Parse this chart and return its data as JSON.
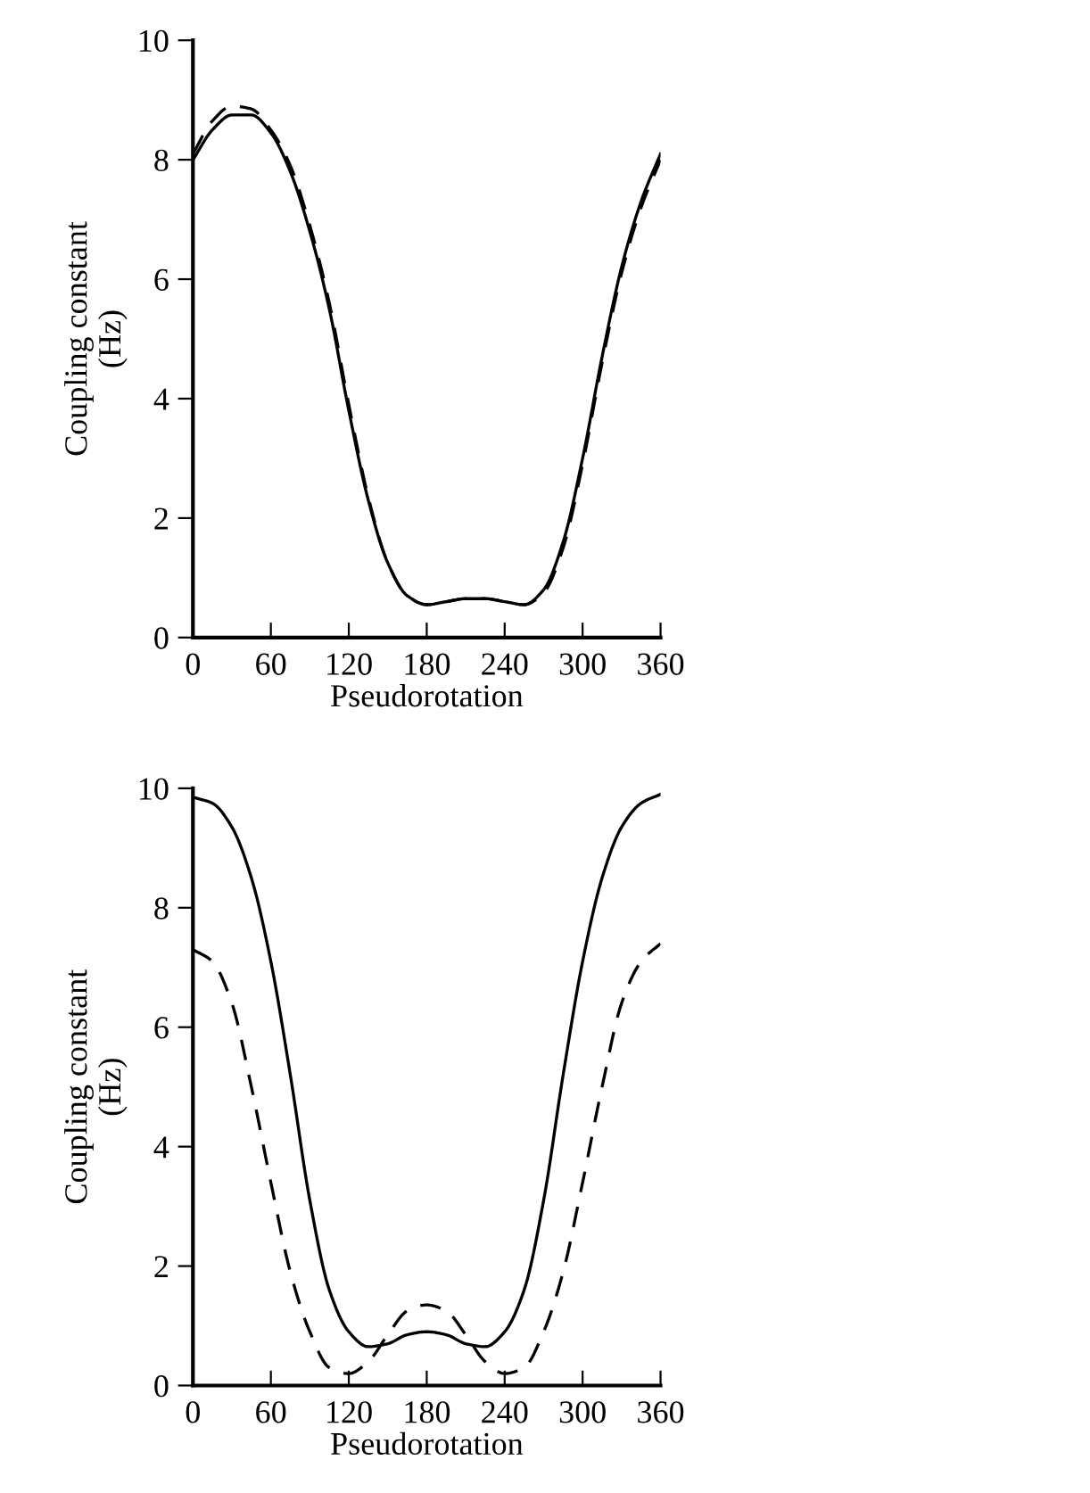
{
  "chart_data": [
    {
      "type": "line",
      "xlabel": "Pseudorotation",
      "ylabel": "Coupling constant\n(Hz)",
      "xlim": [
        0,
        360
      ],
      "ylim": [
        0,
        10
      ],
      "xticks": [
        0,
        60,
        120,
        180,
        240,
        300,
        360
      ],
      "yticks": [
        0,
        2,
        4,
        6,
        8,
        10
      ],
      "grid": false,
      "x": [
        0,
        15,
        30,
        45,
        60,
        75,
        90,
        105,
        120,
        135,
        150,
        165,
        180,
        195,
        210,
        225,
        240,
        255,
        270,
        285,
        300,
        315,
        330,
        345,
        360
      ],
      "series": [
        {
          "color": "#000000",
          "line_style": "solid",
          "values": [
            8.0,
            8.5,
            8.75,
            8.75,
            8.45,
            7.8,
            6.8,
            5.5,
            3.8,
            2.3,
            1.25,
            0.7,
            0.55,
            0.6,
            0.65,
            0.65,
            0.6,
            0.55,
            0.8,
            1.6,
            3.0,
            4.7,
            6.2,
            7.3,
            8.1
          ]
        },
        {
          "color": "#000000",
          "line_style": "dashed",
          "values": [
            8.1,
            8.65,
            8.9,
            8.85,
            8.5,
            7.9,
            6.9,
            5.6,
            3.9,
            2.35,
            1.25,
            0.7,
            0.55,
            0.6,
            0.65,
            0.65,
            0.6,
            0.55,
            0.75,
            1.5,
            2.9,
            4.6,
            6.1,
            7.2,
            8.0
          ]
        }
      ]
    },
    {
      "type": "line",
      "xlabel": "Pseudorotation",
      "ylabel": "Coupling constant\n(Hz)",
      "xlim": [
        0,
        360
      ],
      "ylim": [
        0,
        10
      ],
      "xticks": [
        0,
        60,
        120,
        180,
        240,
        300,
        360
      ],
      "yticks": [
        0,
        2,
        4,
        6,
        8,
        10
      ],
      "grid": false,
      "x": [
        0,
        15,
        30,
        45,
        60,
        75,
        90,
        105,
        120,
        135,
        150,
        165,
        180,
        195,
        210,
        225,
        240,
        255,
        270,
        285,
        300,
        315,
        330,
        345,
        360
      ],
      "series": [
        {
          "color": "#000000",
          "line_style": "solid",
          "values": [
            9.85,
            9.75,
            9.35,
            8.5,
            7.1,
            5.2,
            3.1,
            1.6,
            0.9,
            0.65,
            0.7,
            0.85,
            0.9,
            0.85,
            0.7,
            0.65,
            0.9,
            1.6,
            3.1,
            5.2,
            7.1,
            8.5,
            9.35,
            9.75,
            9.9
          ]
        },
        {
          "color": "#000000",
          "line_style": "dashed",
          "values": [
            7.3,
            7.1,
            6.4,
            5.0,
            3.4,
            1.9,
            0.9,
            0.3,
            0.2,
            0.4,
            0.85,
            1.25,
            1.35,
            1.25,
            0.85,
            0.4,
            0.2,
            0.3,
            0.9,
            1.9,
            3.4,
            5.0,
            6.4,
            7.1,
            7.4
          ]
        }
      ]
    }
  ]
}
